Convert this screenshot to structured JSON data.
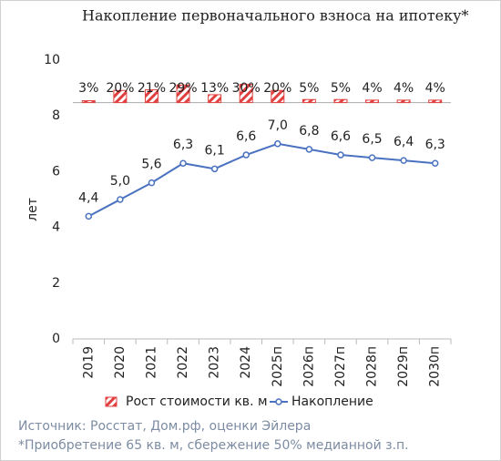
{
  "chart_data": {
    "type": "line",
    "title": "Накопление первоначального взноса на ипотеку*",
    "ylabel": "лет",
    "categories": [
      "2019",
      "2020",
      "2021",
      "2022",
      "2023",
      "2024",
      "2025п",
      "2026п",
      "2027п",
      "2028п",
      "2029п",
      "2030п"
    ],
    "ylim": [
      0,
      10
    ],
    "yticks": [
      0,
      2,
      4,
      6,
      8,
      10
    ],
    "y2lim": [
      -390,
      70
    ],
    "grid": false,
    "legend": "bottom",
    "series": [
      {
        "name": "Рост стоимости кв. м",
        "type": "bar",
        "axis": "y2",
        "color": "#e0403f",
        "values": [
          3,
          20,
          21,
          29,
          13,
          30,
          20,
          5,
          5,
          4,
          4,
          4
        ],
        "value_labels": [
          "3%",
          "20%",
          "21%",
          "29%",
          "13%",
          "30%",
          "20%",
          "5%",
          "5%",
          "4%",
          "4%",
          "4%"
        ]
      },
      {
        "name": "Накопление",
        "type": "line",
        "color": "#4a72c0",
        "values": [
          4.4,
          5.0,
          5.6,
          6.3,
          6.1,
          6.6,
          7.0,
          6.8,
          6.6,
          6.5,
          6.4,
          6.3
        ],
        "value_labels": [
          "4,4",
          "5,0",
          "5,6",
          "6,3",
          "6,1",
          "6,6",
          "7,0",
          "6,8",
          "6,6",
          "6,5",
          "6,4",
          "6,3"
        ]
      }
    ],
    "notes": [
      "Источник: Росстат, Дом.рф, оценки Эйлера",
      "*Приобретение 65 кв. м, сбережение 50% медианной з.п."
    ]
  }
}
